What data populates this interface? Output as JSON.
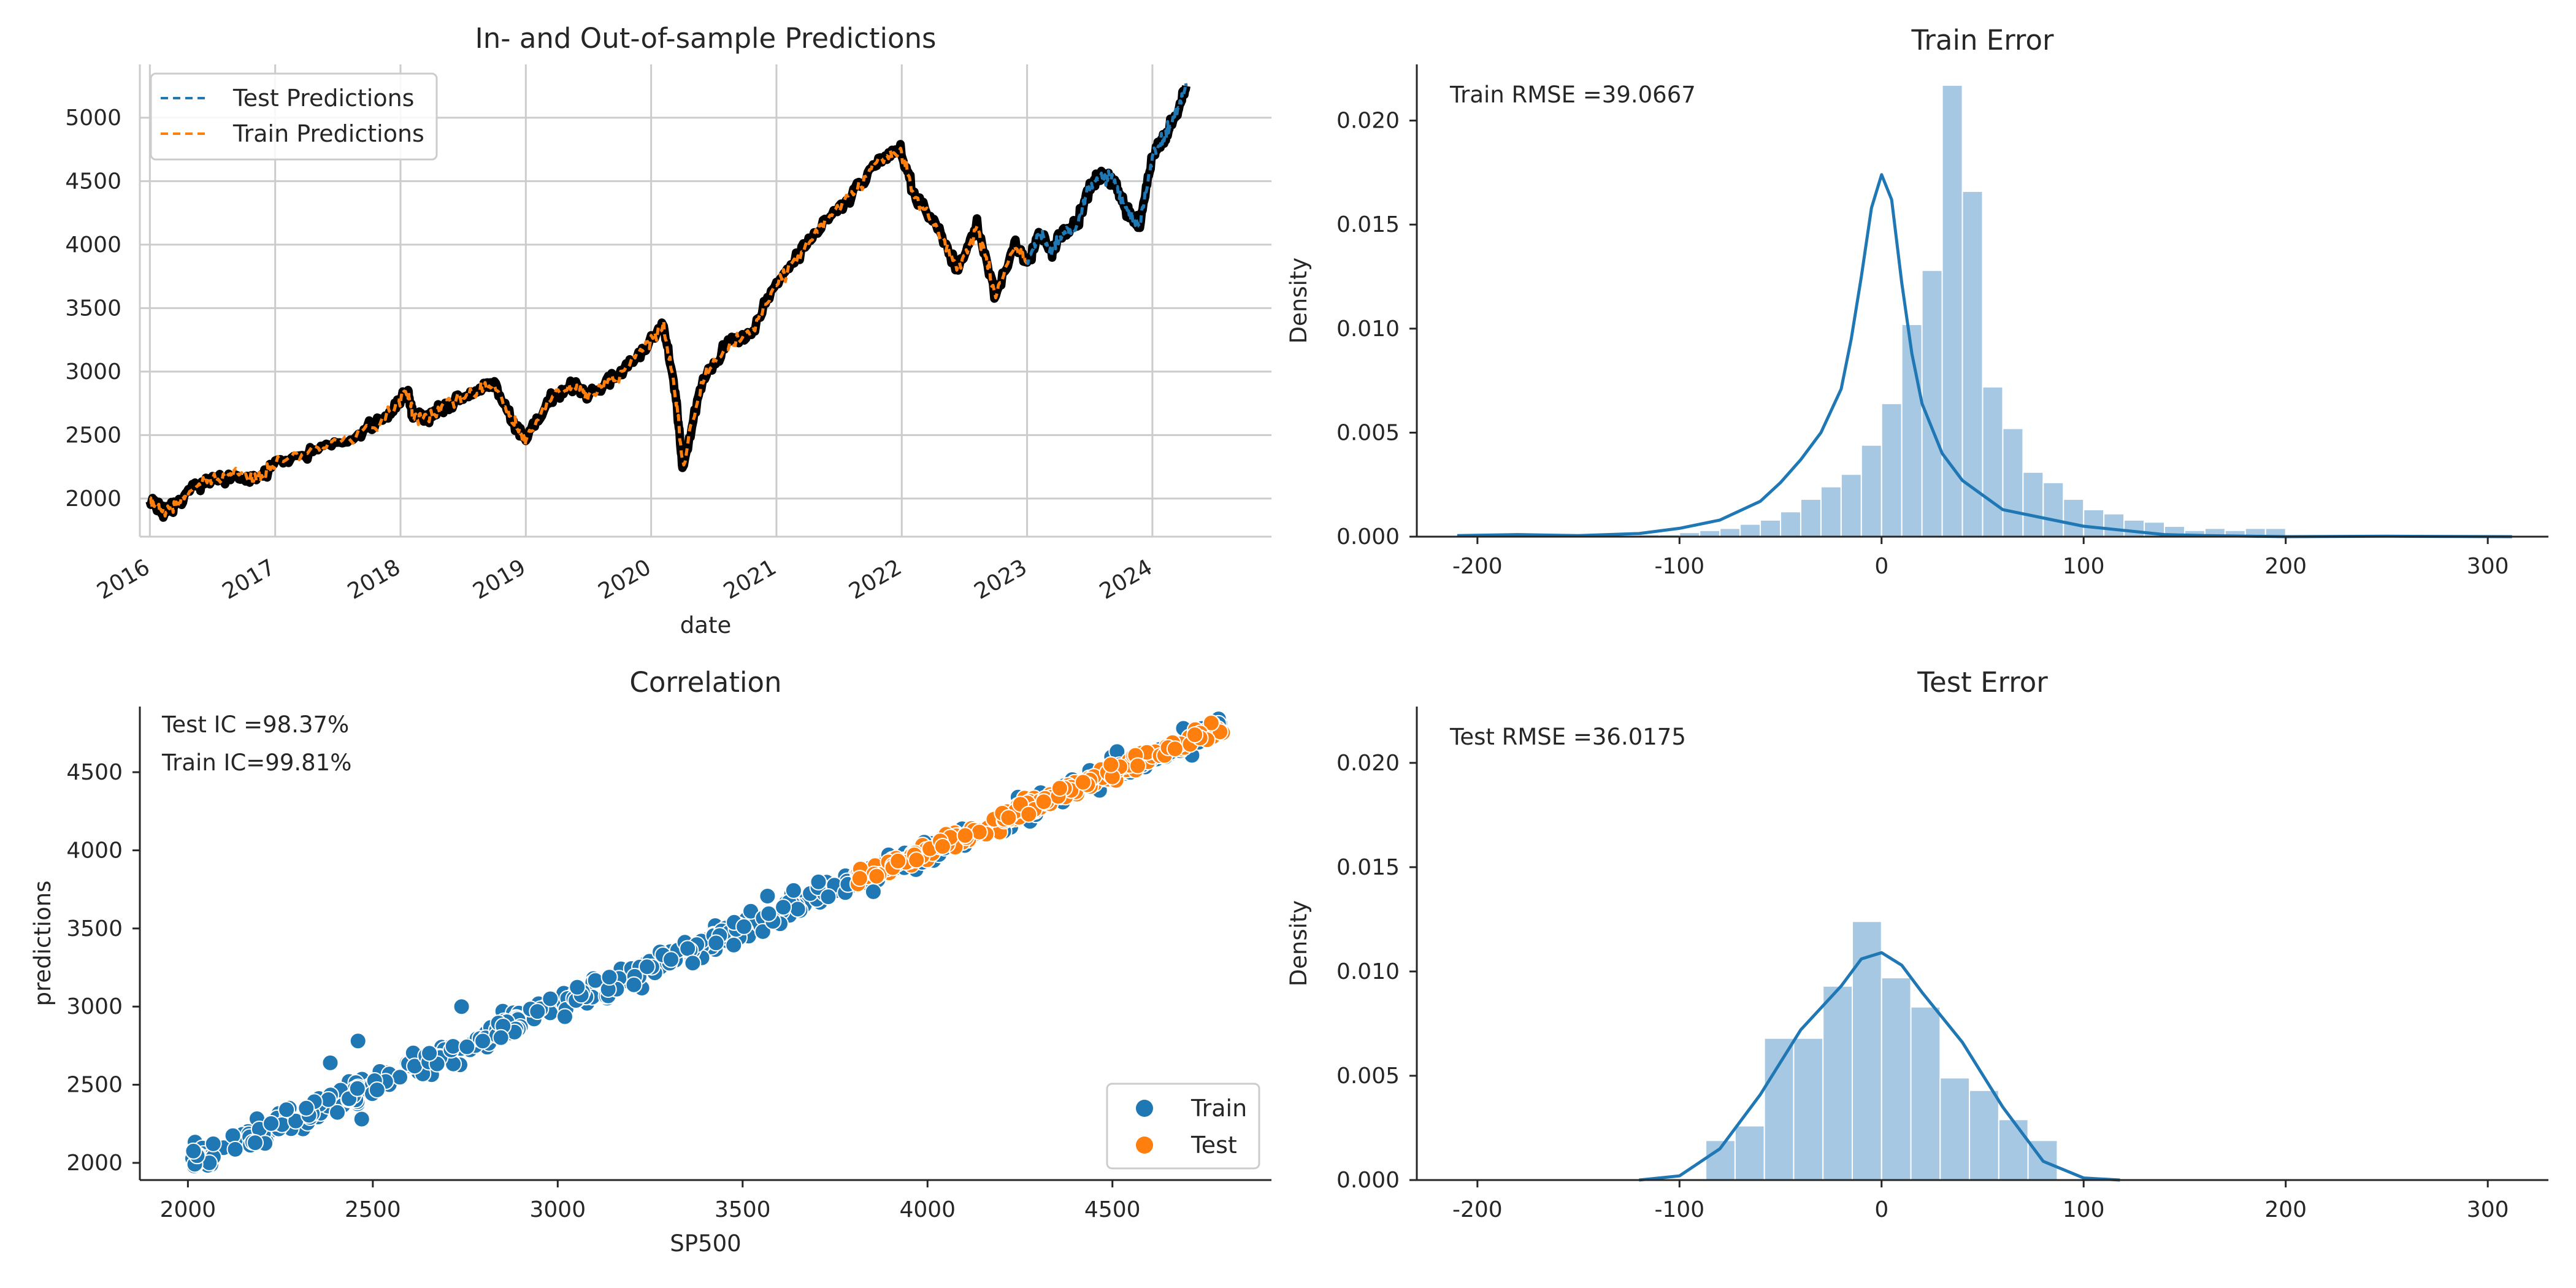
{
  "colors": {
    "train": "#1f77b4",
    "test": "#ff7f0e",
    "price": "#000000",
    "hist": "#a6c8e3",
    "kde": "#1f77b4",
    "grid": "#cccccc",
    "axis": "#262626"
  },
  "chart_data": [
    {
      "type": "line",
      "title": "In- and Out-of-sample Predictions",
      "xlabel": "date",
      "ylabel": "",
      "grid": true,
      "legend_position": "top-left",
      "x_ticks": [
        "2016",
        "2017",
        "2018",
        "2019",
        "2020",
        "2021",
        "2022",
        "2023",
        "2024"
      ],
      "y_ticks": [
        2000,
        2500,
        3000,
        3500,
        4000,
        4500,
        5000
      ],
      "xlim": [
        2015.92,
        2024.95
      ],
      "ylim": [
        1700,
        5420
      ],
      "series": [
        {
          "name": "Test Predictions",
          "style": "dashed",
          "color": "#1f77b4",
          "x": [
            2023.0,
            2023.1,
            2023.2,
            2023.3,
            2023.4,
            2023.5,
            2023.6,
            2023.7,
            2023.8,
            2023.9,
            2024.0,
            2024.1,
            2024.2,
            2024.27
          ],
          "y": [
            3850,
            4100,
            3950,
            4120,
            4150,
            4450,
            4550,
            4480,
            4250,
            4150,
            4700,
            4850,
            5050,
            5250
          ]
        },
        {
          "name": "Train Predictions",
          "style": "dashed",
          "color": "#ff7f0e",
          "x": [
            2016.0,
            2016.1,
            2016.2,
            2016.35,
            2016.5,
            2016.7,
            2016.85,
            2017.0,
            2017.3,
            2017.6,
            2017.9,
            2018.05,
            2018.1,
            2018.2,
            2018.4,
            2018.6,
            2018.75,
            2018.9,
            2019.0,
            2019.2,
            2019.4,
            2019.5,
            2019.7,
            2019.9,
            2020.1,
            2020.2,
            2020.25,
            2020.4,
            2020.6,
            2020.8,
            2021.0,
            2021.2,
            2021.4,
            2021.6,
            2021.8,
            2021.99,
            2022.1,
            2022.3,
            2022.45,
            2022.6,
            2022.75,
            2022.9,
            2023.0
          ],
          "y": [
            2000,
            1900,
            1950,
            2100,
            2150,
            2180,
            2150,
            2280,
            2380,
            2470,
            2650,
            2850,
            2650,
            2650,
            2750,
            2850,
            2900,
            2600,
            2450,
            2800,
            2900,
            2800,
            2950,
            3150,
            3350,
            2800,
            2250,
            2900,
            3200,
            3300,
            3700,
            3950,
            4200,
            4400,
            4650,
            4750,
            4400,
            4100,
            3800,
            4150,
            3600,
            4000,
            3850
          ]
        },
        {
          "name": "",
          "style": "solid-thick",
          "color": "#000000",
          "x": [
            2016.0,
            2016.1,
            2016.2,
            2016.35,
            2016.5,
            2016.7,
            2016.85,
            2017.0,
            2017.3,
            2017.6,
            2017.9,
            2018.05,
            2018.1,
            2018.2,
            2018.4,
            2018.6,
            2018.75,
            2018.9,
            2019.0,
            2019.2,
            2019.4,
            2019.5,
            2019.7,
            2019.9,
            2020.1,
            2020.2,
            2020.25,
            2020.4,
            2020.6,
            2020.8,
            2021.0,
            2021.2,
            2021.4,
            2021.6,
            2021.8,
            2021.99,
            2022.1,
            2022.3,
            2022.45,
            2022.6,
            2022.75,
            2022.9,
            2023.0,
            2023.1,
            2023.2,
            2023.3,
            2023.4,
            2023.5,
            2023.6,
            2023.7,
            2023.8,
            2023.9,
            2024.0,
            2024.1,
            2024.2,
            2024.27
          ],
          "y": [
            2000,
            1900,
            1950,
            2100,
            2150,
            2180,
            2150,
            2280,
            2380,
            2470,
            2650,
            2850,
            2650,
            2650,
            2750,
            2850,
            2900,
            2600,
            2450,
            2800,
            2900,
            2800,
            2950,
            3150,
            3350,
            2800,
            2250,
            2900,
            3200,
            3300,
            3700,
            3950,
            4200,
            4400,
            4650,
            4750,
            4400,
            4100,
            3800,
            4150,
            3600,
            4000,
            3850,
            4100,
            3950,
            4120,
            4150,
            4450,
            4550,
            4480,
            4250,
            4150,
            4700,
            4850,
            5050,
            5250
          ]
        }
      ]
    },
    {
      "type": "histogram",
      "title": "Train Error",
      "xlabel": "",
      "ylabel": "Density",
      "annotation": "Train RMSE =39.0667",
      "x_ticks": [
        -200,
        -100,
        0,
        100,
        200,
        300
      ],
      "y_ticks": [
        "0.000",
        "0.005",
        "0.010",
        "0.015",
        "0.020"
      ],
      "xlim": [
        -230,
        330
      ],
      "ylim": [
        0,
        0.0227
      ],
      "bins": {
        "start": -200,
        "width": 10,
        "density": [
          5e-05,
          0.0001,
          0.0001,
          5e-05,
          5e-05,
          5e-05,
          5e-05,
          5e-05,
          0.0001,
          0.0001,
          0.0002,
          0.0003,
          0.0004,
          0.0006,
          0.0008,
          0.0012,
          0.0018,
          0.0024,
          0.003,
          0.0044,
          0.0064,
          0.0102,
          0.0128,
          0.0217,
          0.0166,
          0.0072,
          0.0052,
          0.0031,
          0.0026,
          0.0018,
          0.0013,
          0.0011,
          0.0008,
          0.0007,
          0.0005,
          0.0003,
          0.0004,
          0.0003,
          0.0004,
          0.0004,
          0.0001,
          0.0001,
          5e-05,
          5e-05,
          5e-05
        ]
      },
      "kde": {
        "x": [
          -210,
          -180,
          -150,
          -120,
          -100,
          -80,
          -60,
          -50,
          -40,
          -30,
          -20,
          -15,
          -10,
          -5,
          0,
          5,
          10,
          15,
          20,
          30,
          40,
          50,
          60,
          80,
          100,
          120,
          140,
          160,
          200,
          250,
          312
        ],
        "y": [
          5e-05,
          0.0001,
          5e-05,
          0.00015,
          0.0004,
          0.0008,
          0.0017,
          0.0026,
          0.0037,
          0.005,
          0.0071,
          0.0095,
          0.0125,
          0.0158,
          0.0174,
          0.0162,
          0.0122,
          0.0088,
          0.0064,
          0.004,
          0.0027,
          0.002,
          0.0013,
          0.0009,
          0.0005,
          0.0003,
          0.0001,
          5e-05,
          0.0,
          2e-05,
          0.0
        ]
      }
    },
    {
      "type": "scatter",
      "title": "Correlation",
      "xlabel": "SP500",
      "ylabel": "predictions",
      "annotations": [
        "Test IC =98.37%",
        "Train IC=99.81%"
      ],
      "legend_position": "bottom-right",
      "x_ticks": [
        2000,
        2500,
        3000,
        3500,
        4000,
        4500
      ],
      "y_ticks": [
        2000,
        2500,
        3000,
        3500,
        4000,
        4500
      ],
      "xlim": [
        1870,
        4930
      ],
      "ylim": [
        1890,
        4920
      ],
      "series": [
        {
          "name": "Train",
          "color": "#1f77b4",
          "x_range": [
            2000,
            4800
          ],
          "fit": {
            "slope": 1.0,
            "intercept": 0
          },
          "spread": 40,
          "outliers": [
            [
              2385,
              2640
            ],
            [
              2460,
              2780
            ],
            [
              2470,
              2280
            ],
            [
              2740,
              3000
            ],
            [
              2320,
              2350
            ],
            [
              2980,
              3050
            ]
          ]
        },
        {
          "name": "Test",
          "color": "#ff7f0e",
          "x_range": [
            3810,
            4800
          ],
          "fit": {
            "slope": 1.0,
            "intercept": 0
          },
          "spread": 30
        }
      ]
    },
    {
      "type": "histogram",
      "title": "Test Error",
      "xlabel": "",
      "ylabel": "Density",
      "annotation": "Test RMSE =36.0175",
      "x_ticks": [
        -200,
        -100,
        0,
        100,
        200,
        300
      ],
      "y_ticks": [
        "0.000",
        "0.005",
        "0.010",
        "0.015",
        "0.020"
      ],
      "xlim": [
        -230,
        330
      ],
      "ylim": [
        0,
        0.0227
      ],
      "bins": {
        "start": -87,
        "width": 14.5,
        "density": [
          0.0019,
          0.0026,
          0.0068,
          0.0068,
          0.0093,
          0.0124,
          0.0097,
          0.0083,
          0.0049,
          0.0043,
          0.0029,
          0.0019
        ]
      },
      "kde": {
        "x": [
          -120,
          -100,
          -80,
          -60,
          -40,
          -20,
          -10,
          0,
          10,
          20,
          40,
          60,
          80,
          100,
          118
        ],
        "y": [
          0.0,
          0.0002,
          0.0015,
          0.0041,
          0.0072,
          0.0093,
          0.0106,
          0.0109,
          0.0103,
          0.009,
          0.0066,
          0.0035,
          0.0009,
          0.0001,
          0.0
        ]
      }
    }
  ]
}
